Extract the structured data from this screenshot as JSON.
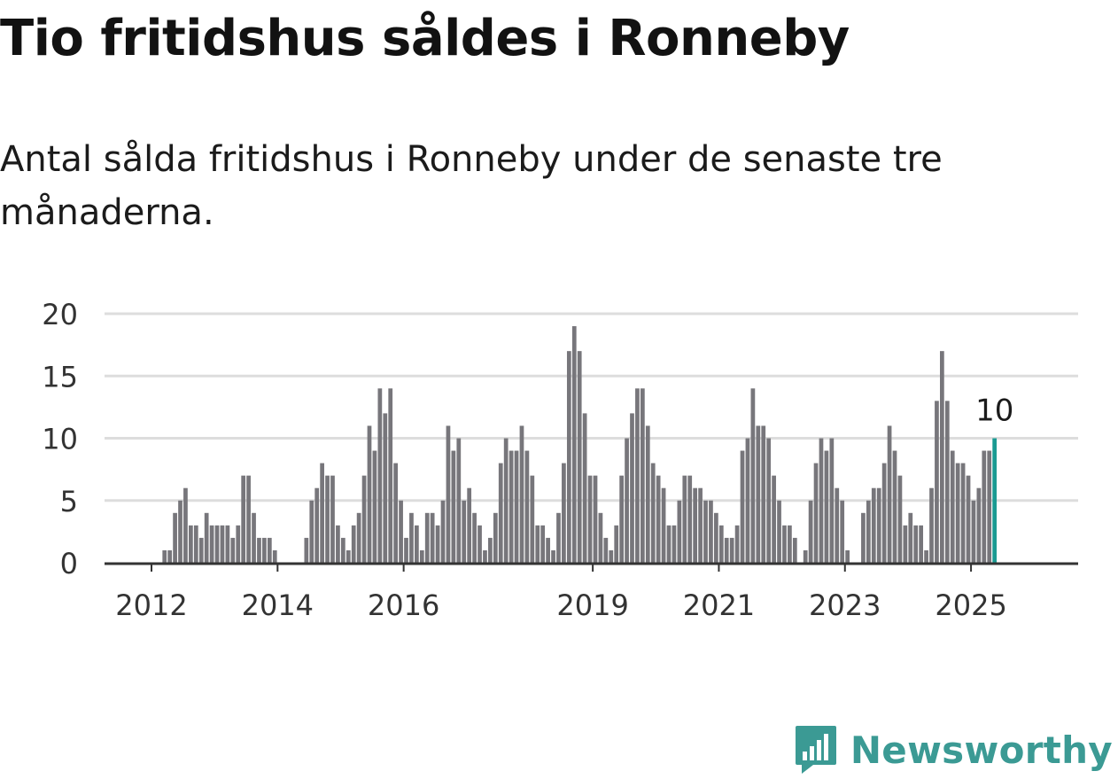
{
  "title": "Tio fritidshus såldes i Ronneby",
  "subtitle": "Antal sålda fritidshus i Ronneby under de senaste tre månaderna.",
  "brand": {
    "name": "Newsworthy",
    "icon": "newsworthy-logo-icon"
  },
  "colors": {
    "bar": "#77767b",
    "highlight": "#1a9a92",
    "grid": "#dddddd",
    "axis": "#333333",
    "brand": "#3b9a94"
  },
  "chart_data": {
    "type": "bar",
    "title": "Tio fritidshus såldes i Ronneby",
    "subtitle": "Antal sålda fritidshus i Ronneby under de senaste tre månaderna.",
    "xlabel": "",
    "ylabel": "",
    "ylim": [
      0,
      20
    ],
    "yticks": [
      0,
      5,
      10,
      15,
      20
    ],
    "grid": true,
    "x_start": "2012-01",
    "x_end": "2025-03",
    "x_frequency": "monthly",
    "xtick_labels": [
      "2012",
      "2014",
      "2016",
      "2019",
      "2021",
      "2023",
      "2025"
    ],
    "values": [
      0,
      0,
      1,
      1,
      4,
      5,
      6,
      3,
      3,
      2,
      4,
      3,
      3,
      3,
      3,
      2,
      3,
      7,
      7,
      4,
      2,
      2,
      2,
      1,
      0,
      0,
      0,
      0,
      0,
      2,
      5,
      6,
      8,
      7,
      7,
      3,
      2,
      1,
      3,
      4,
      7,
      11,
      9,
      14,
      12,
      14,
      8,
      5,
      2,
      4,
      3,
      1,
      4,
      4,
      3,
      5,
      11,
      9,
      10,
      5,
      6,
      4,
      3,
      1,
      2,
      4,
      8,
      10,
      9,
      9,
      11,
      9,
      7,
      3,
      3,
      2,
      1,
      4,
      8,
      17,
      19,
      17,
      12,
      7,
      7,
      4,
      2,
      1,
      3,
      7,
      10,
      12,
      14,
      14,
      11,
      8,
      7,
      6,
      3,
      3,
      5,
      7,
      7,
      6,
      6,
      5,
      5,
      4,
      3,
      2,
      2,
      3,
      9,
      10,
      14,
      11,
      11,
      10,
      7,
      5,
      3,
      3,
      2,
      0,
      1,
      5,
      8,
      10,
      9,
      10,
      6,
      5,
      1,
      0,
      0,
      4,
      5,
      6,
      6,
      8,
      11,
      9,
      7,
      3,
      4,
      3,
      3,
      1,
      6,
      13,
      17,
      13,
      9,
      8,
      8,
      7,
      5,
      6,
      9,
      9,
      10
    ],
    "highlight": {
      "label": "10",
      "value": 10,
      "index": "last"
    }
  }
}
